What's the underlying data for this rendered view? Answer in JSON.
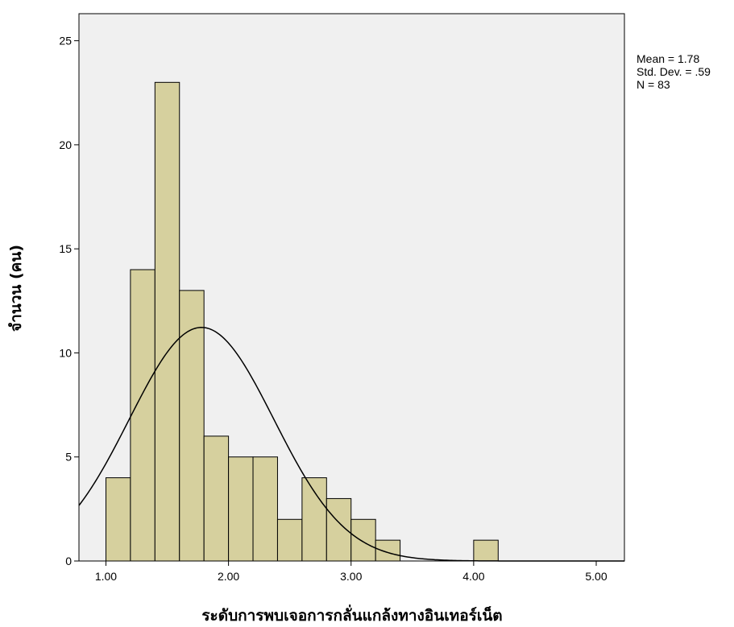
{
  "chart_data": {
    "type": "histogram",
    "xlabel": "ระดับการพบเจอการกลั่นแกล้งทางอินเทอร์เน็ต",
    "ylabel": "จำนวน (คน)",
    "xlim": [
      0.78,
      5.23
    ],
    "ylim": [
      0,
      26.3
    ],
    "x_ticks": [
      {
        "value": 1.0,
        "label": "1.00"
      },
      {
        "value": 2.0,
        "label": "2.00"
      },
      {
        "value": 3.0,
        "label": "3.00"
      },
      {
        "value": 4.0,
        "label": "4.00"
      },
      {
        "value": 5.0,
        "label": "5.00"
      }
    ],
    "y_ticks": [
      {
        "value": 0,
        "label": "0"
      },
      {
        "value": 5,
        "label": "5"
      },
      {
        "value": 10,
        "label": "10"
      },
      {
        "value": 15,
        "label": "15"
      },
      {
        "value": 20,
        "label": "20"
      },
      {
        "value": 25,
        "label": "25"
      }
    ],
    "bins": [
      {
        "start": 1.0,
        "end": 1.2,
        "count": 4
      },
      {
        "start": 1.2,
        "end": 1.4,
        "count": 14
      },
      {
        "start": 1.4,
        "end": 1.6,
        "count": 23
      },
      {
        "start": 1.6,
        "end": 1.8,
        "count": 13
      },
      {
        "start": 1.8,
        "end": 2.0,
        "count": 6
      },
      {
        "start": 2.0,
        "end": 2.2,
        "count": 5
      },
      {
        "start": 2.2,
        "end": 2.4,
        "count": 5
      },
      {
        "start": 2.4,
        "end": 2.6,
        "count": 2
      },
      {
        "start": 2.6,
        "end": 2.8,
        "count": 4
      },
      {
        "start": 2.8,
        "end": 3.0,
        "count": 3
      },
      {
        "start": 3.0,
        "end": 3.2,
        "count": 2
      },
      {
        "start": 3.2,
        "end": 3.4,
        "count": 1
      },
      {
        "start": 4.0,
        "end": 4.2,
        "count": 1
      }
    ],
    "normal_curve": {
      "mean": 1.78,
      "sd": 0.59,
      "n": 83,
      "bin_width": 0.2
    },
    "stats_lines": [
      "Mean = 1.78",
      "Std. Dev. = .59",
      "N = 83"
    ],
    "colors": {
      "bar_fill": "#d6d09e",
      "bar_stroke": "#000000",
      "plot_background": "#f0f0f0",
      "curve": "#000000"
    },
    "grid": false,
    "legend": "top-right"
  }
}
